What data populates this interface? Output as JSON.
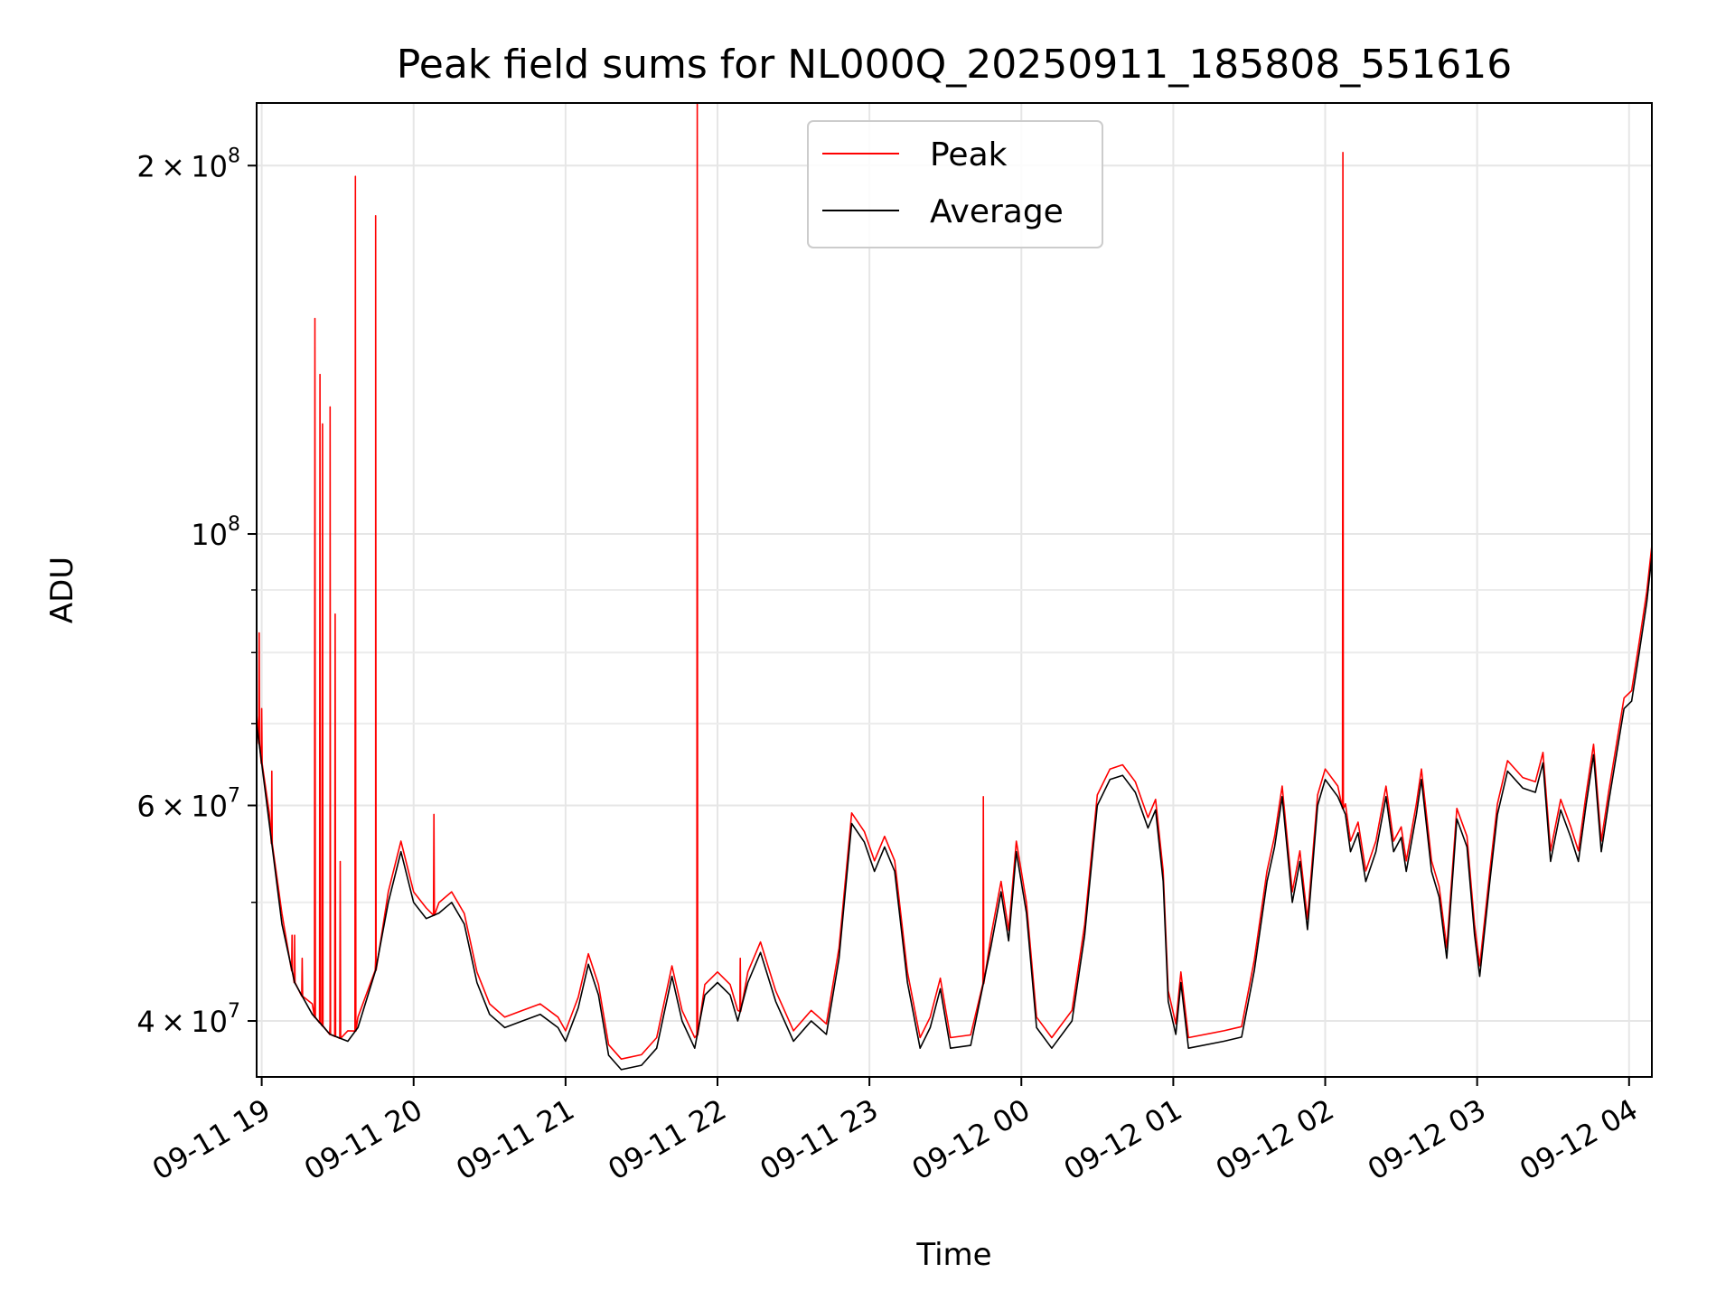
{
  "chart_data": {
    "type": "line",
    "title": "Peak field sums for NL000Q_20250911_185808_551616",
    "xlabel": "Time",
    "ylabel": "ADU",
    "x_range": [
      "2025-09-11 18:58",
      "2025-09-12 04:09"
    ],
    "ylim": [
      36000000,
      225000000
    ],
    "y_scale": "log",
    "grid": true,
    "legend_position": "top-center",
    "x_ticks": [
      {
        "t": "2025-09-11 19:00",
        "label": "09-11 19"
      },
      {
        "t": "2025-09-11 20:00",
        "label": "09-11 20"
      },
      {
        "t": "2025-09-11 21:00",
        "label": "09-11 21"
      },
      {
        "t": "2025-09-11 22:00",
        "label": "09-11 22"
      },
      {
        "t": "2025-09-11 23:00",
        "label": "09-11 23"
      },
      {
        "t": "2025-09-12 00:00",
        "label": "09-12 00"
      },
      {
        "t": "2025-09-12 01:00",
        "label": "09-12 01"
      },
      {
        "t": "2025-09-12 02:00",
        "label": "09-12 02"
      },
      {
        "t": "2025-09-12 03:00",
        "label": "09-12 03"
      },
      {
        "t": "2025-09-12 04:00",
        "label": "09-12 04"
      }
    ],
    "y_major_ticks": [
      {
        "v": 40000000,
        "mant": "4",
        "exp": "7"
      },
      {
        "v": 60000000,
        "mant": "6",
        "exp": "7"
      },
      {
        "v": 100000000,
        "mant": "",
        "exp": "8"
      },
      {
        "v": 200000000,
        "mant": "2",
        "exp": "8"
      }
    ],
    "y_minor_ticks": [
      50000000,
      70000000,
      80000000,
      90000000
    ],
    "series": [
      {
        "name": "Average",
        "color": "#000000",
        "points": [
          [
            "2025-09-11 18:58",
            70000000
          ],
          [
            "2025-09-11 19:03",
            58000000
          ],
          [
            "2025-09-11 19:08",
            48000000
          ],
          [
            "2025-09-11 19:13",
            43000000
          ],
          [
            "2025-09-11 19:20",
            40500000
          ],
          [
            "2025-09-11 19:27",
            39000000
          ],
          [
            "2025-09-11 19:34",
            38500000
          ],
          [
            "2025-09-11 19:38",
            39500000
          ],
          [
            "2025-09-11 19:45",
            44000000
          ],
          [
            "2025-09-11 19:50",
            50000000
          ],
          [
            "2025-09-11 19:55",
            55000000
          ],
          [
            "2025-09-11 20:00",
            50000000
          ],
          [
            "2025-09-11 20:05",
            48500000
          ],
          [
            "2025-09-11 20:10",
            49000000
          ],
          [
            "2025-09-11 20:15",
            50000000
          ],
          [
            "2025-09-11 20:20",
            48000000
          ],
          [
            "2025-09-11 20:25",
            43000000
          ],
          [
            "2025-09-11 20:30",
            40500000
          ],
          [
            "2025-09-11 20:36",
            39500000
          ],
          [
            "2025-09-11 20:43",
            40000000
          ],
          [
            "2025-09-11 20:50",
            40500000
          ],
          [
            "2025-09-11 20:57",
            39500000
          ],
          [
            "2025-09-11 21:00",
            38500000
          ],
          [
            "2025-09-11 21:05",
            41000000
          ],
          [
            "2025-09-11 21:09",
            44500000
          ],
          [
            "2025-09-11 21:13",
            42000000
          ],
          [
            "2025-09-11 21:17",
            37500000
          ],
          [
            "2025-09-11 21:22",
            36500000
          ],
          [
            "2025-09-11 21:30",
            36800000
          ],
          [
            "2025-09-11 21:36",
            38000000
          ],
          [
            "2025-09-11 21:42",
            43500000
          ],
          [
            "2025-09-11 21:46",
            40000000
          ],
          [
            "2025-09-11 21:51",
            38000000
          ],
          [
            "2025-09-11 21:55",
            42000000
          ],
          [
            "2025-09-11 22:00",
            43000000
          ],
          [
            "2025-09-11 22:05",
            42000000
          ],
          [
            "2025-09-11 22:08",
            40000000
          ],
          [
            "2025-09-11 22:12",
            43000000
          ],
          [
            "2025-09-11 22:17",
            45500000
          ],
          [
            "2025-09-11 22:23",
            41500000
          ],
          [
            "2025-09-11 22:30",
            38500000
          ],
          [
            "2025-09-11 22:37",
            40000000
          ],
          [
            "2025-09-11 22:43",
            39000000
          ],
          [
            "2025-09-11 22:48",
            45000000
          ],
          [
            "2025-09-11 22:53",
            58000000
          ],
          [
            "2025-09-11 22:58",
            56000000
          ],
          [
            "2025-09-11 23:02",
            53000000
          ],
          [
            "2025-09-11 23:06",
            55500000
          ],
          [
            "2025-09-11 23:10",
            53000000
          ],
          [
            "2025-09-11 23:15",
            43000000
          ],
          [
            "2025-09-11 23:20",
            38000000
          ],
          [
            "2025-09-11 23:24",
            39500000
          ],
          [
            "2025-09-11 23:28",
            42500000
          ],
          [
            "2025-09-11 23:32",
            38000000
          ],
          [
            "2025-09-11 23:40",
            38200000
          ],
          [
            "2025-09-11 23:48",
            46000000
          ],
          [
            "2025-09-11 23:52",
            51000000
          ],
          [
            "2025-09-11 23:55",
            46500000
          ],
          [
            "2025-09-11 23:58",
            55000000
          ],
          [
            "2025-09-12 00:02",
            49000000
          ],
          [
            "2025-09-12 00:06",
            39500000
          ],
          [
            "2025-09-12 00:12",
            38000000
          ],
          [
            "2025-09-12 00:20",
            40000000
          ],
          [
            "2025-09-12 00:25",
            47000000
          ],
          [
            "2025-09-12 00:30",
            60000000
          ],
          [
            "2025-09-12 00:35",
            63000000
          ],
          [
            "2025-09-12 00:40",
            63500000
          ],
          [
            "2025-09-12 00:45",
            61500000
          ],
          [
            "2025-09-12 00:50",
            57500000
          ],
          [
            "2025-09-12 00:53",
            59500000
          ],
          [
            "2025-09-12 00:56",
            52000000
          ],
          [
            "2025-09-12 00:58",
            41500000
          ],
          [
            "2025-09-12 01:01",
            39000000
          ],
          [
            "2025-09-12 01:03",
            43000000
          ],
          [
            "2025-09-12 01:06",
            38000000
          ],
          [
            "2025-09-12 01:20",
            38500000
          ],
          [
            "2025-09-12 01:27",
            38800000
          ],
          [
            "2025-09-12 01:32",
            44000000
          ],
          [
            "2025-09-12 01:37",
            52000000
          ],
          [
            "2025-09-12 01:40",
            55500000
          ],
          [
            "2025-09-12 01:43",
            61000000
          ],
          [
            "2025-09-12 01:47",
            50000000
          ],
          [
            "2025-09-12 01:50",
            54000000
          ],
          [
            "2025-09-12 01:53",
            47500000
          ],
          [
            "2025-09-12 01:57",
            60000000
          ],
          [
            "2025-09-12 02:00",
            63000000
          ],
          [
            "2025-09-12 02:05",
            61000000
          ],
          [
            "2025-09-12 02:08",
            59000000
          ],
          [
            "2025-09-12 02:10",
            55000000
          ],
          [
            "2025-09-12 02:13",
            57000000
          ],
          [
            "2025-09-12 02:16",
            52000000
          ],
          [
            "2025-09-12 02:20",
            55000000
          ],
          [
            "2025-09-12 02:24",
            61000000
          ],
          [
            "2025-09-12 02:27",
            55000000
          ],
          [
            "2025-09-12 02:30",
            56500000
          ],
          [
            "2025-09-12 02:32",
            53000000
          ],
          [
            "2025-09-12 02:36",
            59000000
          ],
          [
            "2025-09-12 02:38",
            63000000
          ],
          [
            "2025-09-12 02:42",
            53000000
          ],
          [
            "2025-09-12 02:45",
            50500000
          ],
          [
            "2025-09-12 02:48",
            45000000
          ],
          [
            "2025-09-12 02:52",
            58500000
          ],
          [
            "2025-09-12 02:56",
            55500000
          ],
          [
            "2025-09-12 02:59",
            47000000
          ],
          [
            "2025-09-12 03:01",
            43500000
          ],
          [
            "2025-09-12 03:05",
            52000000
          ],
          [
            "2025-09-12 03:08",
            59000000
          ],
          [
            "2025-09-12 03:12",
            64000000
          ],
          [
            "2025-09-12 03:18",
            62000000
          ],
          [
            "2025-09-12 03:23",
            61500000
          ],
          [
            "2025-09-12 03:26",
            65000000
          ],
          [
            "2025-09-12 03:29",
            54000000
          ],
          [
            "2025-09-12 03:33",
            59500000
          ],
          [
            "2025-09-12 03:37",
            56500000
          ],
          [
            "2025-09-12 03:40",
            54000000
          ],
          [
            "2025-09-12 03:43",
            60000000
          ],
          [
            "2025-09-12 03:46",
            66000000
          ],
          [
            "2025-09-12 03:49",
            55000000
          ],
          [
            "2025-09-12 03:52",
            60500000
          ],
          [
            "2025-09-12 03:55",
            66000000
          ],
          [
            "2025-09-12 03:58",
            72000000
          ],
          [
            "2025-09-12 04:01",
            73000000
          ],
          [
            "2025-09-12 04:04",
            80000000
          ],
          [
            "2025-09-12 04:07",
            88000000
          ],
          [
            "2025-09-12 04:09",
            96000000
          ]
        ]
      },
      {
        "name": "Peak",
        "color": "#ff0000",
        "base": "Average",
        "spikes": [
          [
            "2025-09-11 18:59",
            83000000
          ],
          [
            "2025-09-11 19:00",
            72000000
          ],
          [
            "2025-09-11 19:04",
            64000000
          ],
          [
            "2025-09-11 19:12",
            47000000
          ],
          [
            "2025-09-11 19:13",
            47000000
          ],
          [
            "2025-09-11 19:16",
            45000000
          ],
          [
            "2025-09-11 19:21",
            150000000
          ],
          [
            "2025-09-11 19:23",
            135000000
          ],
          [
            "2025-09-11 19:24",
            123000000
          ],
          [
            "2025-09-11 19:27",
            127000000
          ],
          [
            "2025-09-11 19:29",
            86000000
          ],
          [
            "2025-09-11 19:31",
            54000000
          ],
          [
            "2025-09-11 19:37",
            196000000
          ],
          [
            "2025-09-11 19:45",
            182000000
          ],
          [
            "2025-09-11 20:08",
            59000000
          ],
          [
            "2025-09-11 21:52",
            225000000
          ],
          [
            "2025-09-11 22:09",
            45000000
          ],
          [
            "2025-09-11 23:45",
            61000000
          ],
          [
            "2025-09-12 02:07",
            205000000
          ]
        ]
      }
    ]
  }
}
